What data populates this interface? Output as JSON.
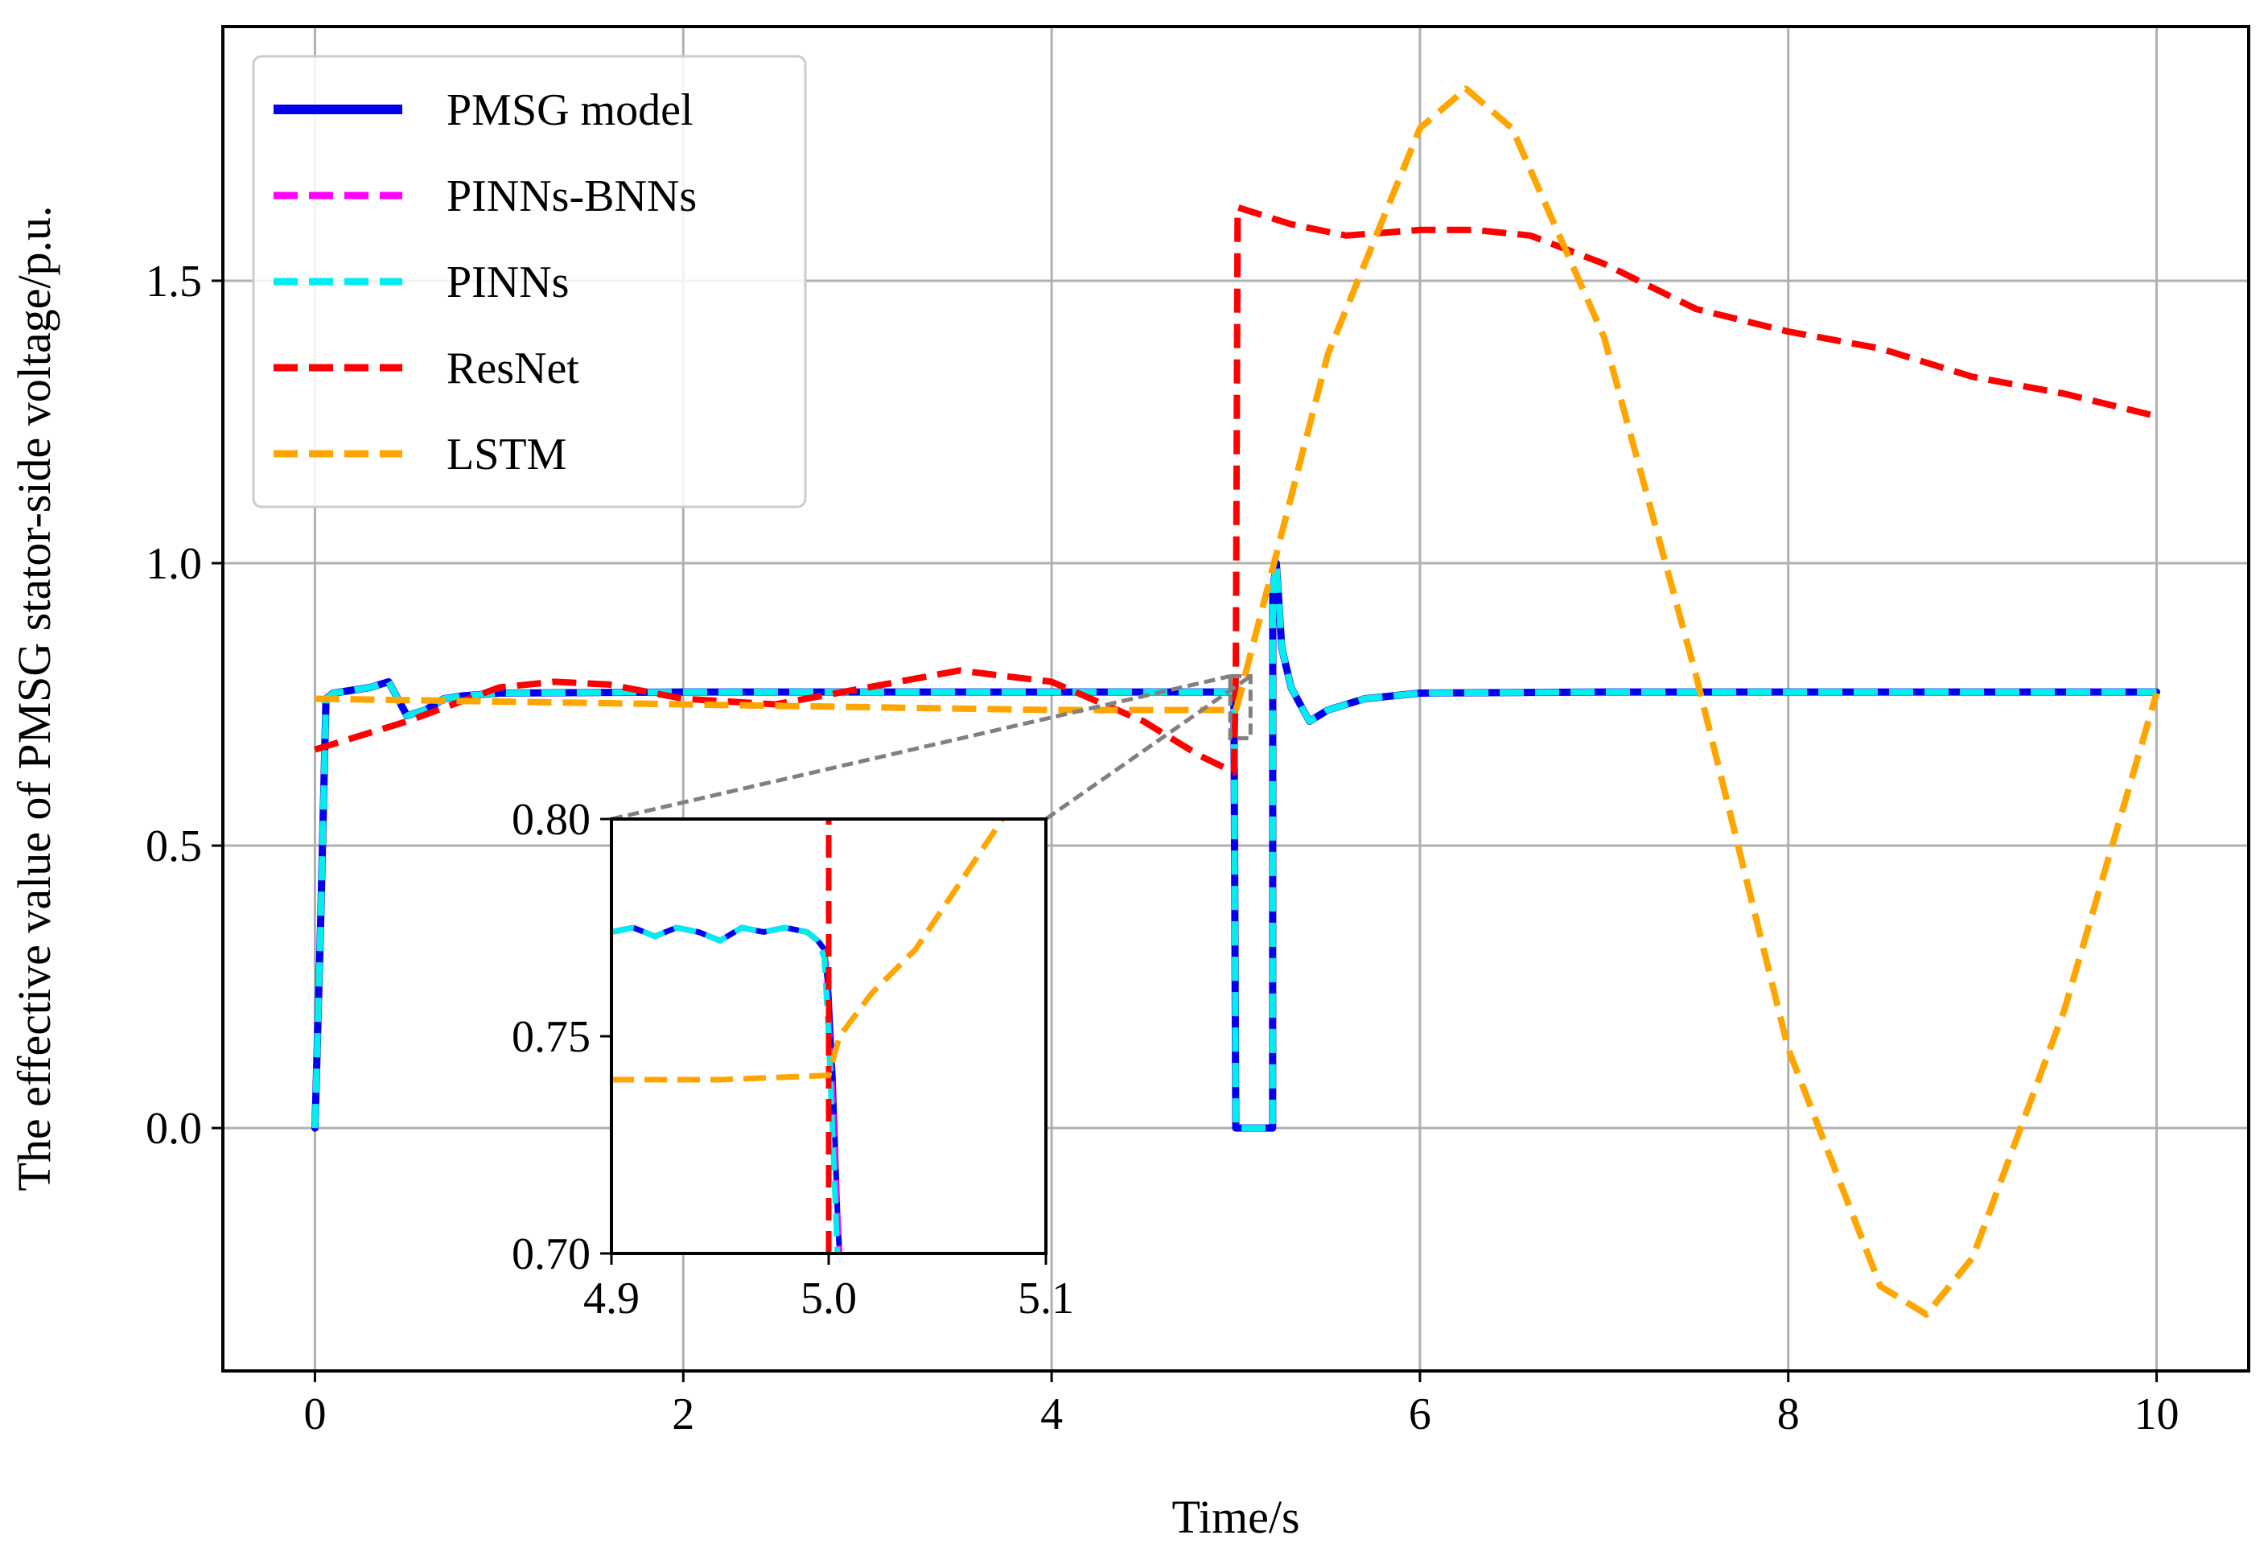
{
  "chart_data": {
    "type": "line",
    "xlabel": "Time/s",
    "ylabel": "The effective value of PMSG stator-side voltage/p.u.",
    "xlim": [
      -0.5,
      10.5
    ],
    "ylim": [
      -0.43,
      1.95
    ],
    "xticks": [
      0,
      2,
      4,
      6,
      8,
      10
    ],
    "xtick_labels": [
      "0",
      "2",
      "4",
      "6",
      "8",
      "10"
    ],
    "yticks": [
      0.0,
      0.5,
      1.0,
      1.5
    ],
    "ytick_labels": [
      "0.0",
      "0.5",
      "1.0",
      "1.5"
    ],
    "grid": true,
    "legend_position": "top-left",
    "series": [
      {
        "name": "PMSG model",
        "color": "#0000ee",
        "style": "solid",
        "x": [
          0,
          0.03,
          0.06,
          0.1,
          0.2,
          0.3,
          0.35,
          0.4,
          0.45,
          0.5,
          0.6,
          0.7,
          0.8,
          1.0,
          2.0,
          3.0,
          4.0,
          4.5,
          4.98,
          4.99,
          5.0,
          5.2,
          5.201,
          5.22,
          5.25,
          5.3,
          5.35,
          5.4,
          5.5,
          5.7,
          6.0,
          7.0,
          8.0,
          9.0,
          10.0
        ],
        "y": [
          0,
          0.35,
          0.76,
          0.77,
          0.775,
          0.78,
          0.785,
          0.79,
          0.76,
          0.73,
          0.74,
          0.76,
          0.765,
          0.77,
          0.772,
          0.772,
          0.772,
          0.772,
          0.772,
          0.765,
          0.0,
          0.0,
          0.95,
          1.0,
          0.85,
          0.78,
          0.75,
          0.72,
          0.74,
          0.76,
          0.77,
          0.772,
          0.772,
          0.772,
          0.772
        ]
      },
      {
        "name": "PINNs-BNNs",
        "color": "#ff00ff",
        "style": "dashed",
        "x": [
          0,
          0.03,
          0.06,
          0.1,
          0.2,
          0.3,
          0.35,
          0.4,
          0.45,
          0.5,
          0.6,
          0.7,
          0.8,
          1.0,
          2.0,
          3.0,
          4.0,
          4.5,
          4.98,
          4.99,
          5.0,
          5.2,
          5.201,
          5.22,
          5.25,
          5.3,
          5.35,
          5.4,
          5.5,
          5.7,
          6.0,
          7.0,
          8.0,
          9.0,
          10.0
        ],
        "y": [
          0,
          0.35,
          0.76,
          0.77,
          0.775,
          0.78,
          0.785,
          0.79,
          0.76,
          0.73,
          0.74,
          0.76,
          0.765,
          0.77,
          0.772,
          0.772,
          0.772,
          0.772,
          0.772,
          0.765,
          0.0,
          0.0,
          0.95,
          1.0,
          0.85,
          0.78,
          0.75,
          0.72,
          0.74,
          0.76,
          0.77,
          0.772,
          0.772,
          0.772,
          0.772
        ]
      },
      {
        "name": "PINNs",
        "color": "#00eeee",
        "style": "dashed",
        "x": [
          0,
          0.03,
          0.06,
          0.1,
          0.2,
          0.3,
          0.35,
          0.4,
          0.45,
          0.5,
          0.6,
          0.7,
          0.8,
          1.0,
          2.0,
          3.0,
          4.0,
          4.5,
          4.98,
          4.99,
          5.0,
          5.2,
          5.201,
          5.22,
          5.25,
          5.3,
          5.35,
          5.4,
          5.5,
          5.7,
          6.0,
          7.0,
          8.0,
          9.0,
          10.0
        ],
        "y": [
          0,
          0.35,
          0.76,
          0.77,
          0.775,
          0.78,
          0.785,
          0.79,
          0.76,
          0.73,
          0.74,
          0.76,
          0.765,
          0.77,
          0.772,
          0.772,
          0.772,
          0.772,
          0.772,
          0.765,
          0.0,
          0.0,
          0.95,
          1.0,
          0.85,
          0.78,
          0.75,
          0.72,
          0.74,
          0.76,
          0.77,
          0.772,
          0.772,
          0.772,
          0.772
        ]
      },
      {
        "name": "ResNet",
        "color": "#ff0000",
        "style": "dashed",
        "x": [
          0,
          0.5,
          1.0,
          1.3,
          1.6,
          2.0,
          2.5,
          3.0,
          3.5,
          4.0,
          4.5,
          4.8,
          4.99,
          5.0,
          5.01,
          5.3,
          5.6,
          6.0,
          6.3,
          6.6,
          7.0,
          7.5,
          8.0,
          8.5,
          9.0,
          9.5,
          10.0
        ],
        "y": [
          0.67,
          0.72,
          0.78,
          0.79,
          0.785,
          0.76,
          0.75,
          0.78,
          0.81,
          0.79,
          0.72,
          0.66,
          0.63,
          0.8,
          1.63,
          1.6,
          1.58,
          1.59,
          1.59,
          1.58,
          1.53,
          1.45,
          1.41,
          1.38,
          1.33,
          1.3,
          1.26
        ]
      },
      {
        "name": "LSTM",
        "color": "#ffa500",
        "style": "dashed",
        "x": [
          0,
          1.0,
          2.0,
          3.0,
          4.0,
          4.5,
          5.0,
          5.01,
          5.5,
          6.0,
          6.25,
          6.5,
          7.0,
          7.5,
          8.0,
          8.5,
          8.75,
          9.0,
          9.5,
          10.0
        ],
        "y": [
          0.76,
          0.755,
          0.75,
          0.745,
          0.74,
          0.74,
          0.74,
          0.75,
          1.37,
          1.77,
          1.84,
          1.77,
          1.4,
          0.8,
          0.14,
          -0.28,
          -0.33,
          -0.23,
          0.21,
          0.77
        ]
      }
    ],
    "inset": {
      "xlim": [
        4.9,
        5.1
      ],
      "ylim": [
        0.7,
        0.8
      ],
      "xticks": [
        4.9,
        5.0,
        5.1
      ],
      "xtick_labels": [
        "4.9",
        "5.0",
        "5.1"
      ],
      "yticks": [
        0.7,
        0.75,
        0.8
      ],
      "ytick_labels": [
        "0.70",
        "0.75",
        "0.80"
      ],
      "zoom_region": {
        "x": [
          4.97,
          5.08
        ],
        "y": [
          0.69,
          0.8
        ]
      },
      "series": [
        {
          "name": "PMSG model",
          "color": "#0000ee",
          "style": "solid",
          "x": [
            4.9,
            4.91,
            4.92,
            4.93,
            4.94,
            4.95,
            4.96,
            4.97,
            4.98,
            4.99,
            4.995,
            4.998,
            5.0,
            5.002,
            5.004,
            5.006
          ],
          "y": [
            0.774,
            0.775,
            0.773,
            0.775,
            0.774,
            0.772,
            0.775,
            0.774,
            0.775,
            0.774,
            0.772,
            0.77,
            0.76,
            0.74,
            0.71,
            0.69
          ]
        },
        {
          "name": "PINNs-BNNs",
          "color": "#ff00ff",
          "style": "dashed",
          "x": [
            4.9,
            4.91,
            4.92,
            4.93,
            4.94,
            4.95,
            4.96,
            4.97,
            4.98,
            4.99,
            4.995,
            4.998,
            5.0,
            5.002,
            5.004,
            5.006
          ],
          "y": [
            0.774,
            0.775,
            0.773,
            0.775,
            0.774,
            0.772,
            0.775,
            0.774,
            0.775,
            0.774,
            0.772,
            0.77,
            0.755,
            0.735,
            0.71,
            0.69
          ]
        },
        {
          "name": "PINNs",
          "color": "#00eeee",
          "style": "dashed",
          "x": [
            4.9,
            4.91,
            4.92,
            4.93,
            4.94,
            4.95,
            4.96,
            4.97,
            4.98,
            4.99,
            4.995,
            4.998,
            5.0,
            5.002,
            5.004,
            5.006
          ],
          "y": [
            0.774,
            0.775,
            0.773,
            0.775,
            0.774,
            0.772,
            0.775,
            0.774,
            0.775,
            0.774,
            0.772,
            0.768,
            0.75,
            0.725,
            0.7,
            0.69
          ]
        },
        {
          "name": "ResNet",
          "color": "#ff0000",
          "style": "dashed",
          "x": [
            5.0,
            5.0
          ],
          "y": [
            0.7,
            0.8
          ]
        },
        {
          "name": "LSTM",
          "color": "#ffa500",
          "style": "dashed",
          "x": [
            4.9,
            4.95,
            5.0,
            5.005,
            5.02,
            5.04,
            5.06,
            5.08
          ],
          "y": [
            0.74,
            0.74,
            0.741,
            0.75,
            0.76,
            0.77,
            0.785,
            0.8
          ]
        }
      ]
    }
  }
}
